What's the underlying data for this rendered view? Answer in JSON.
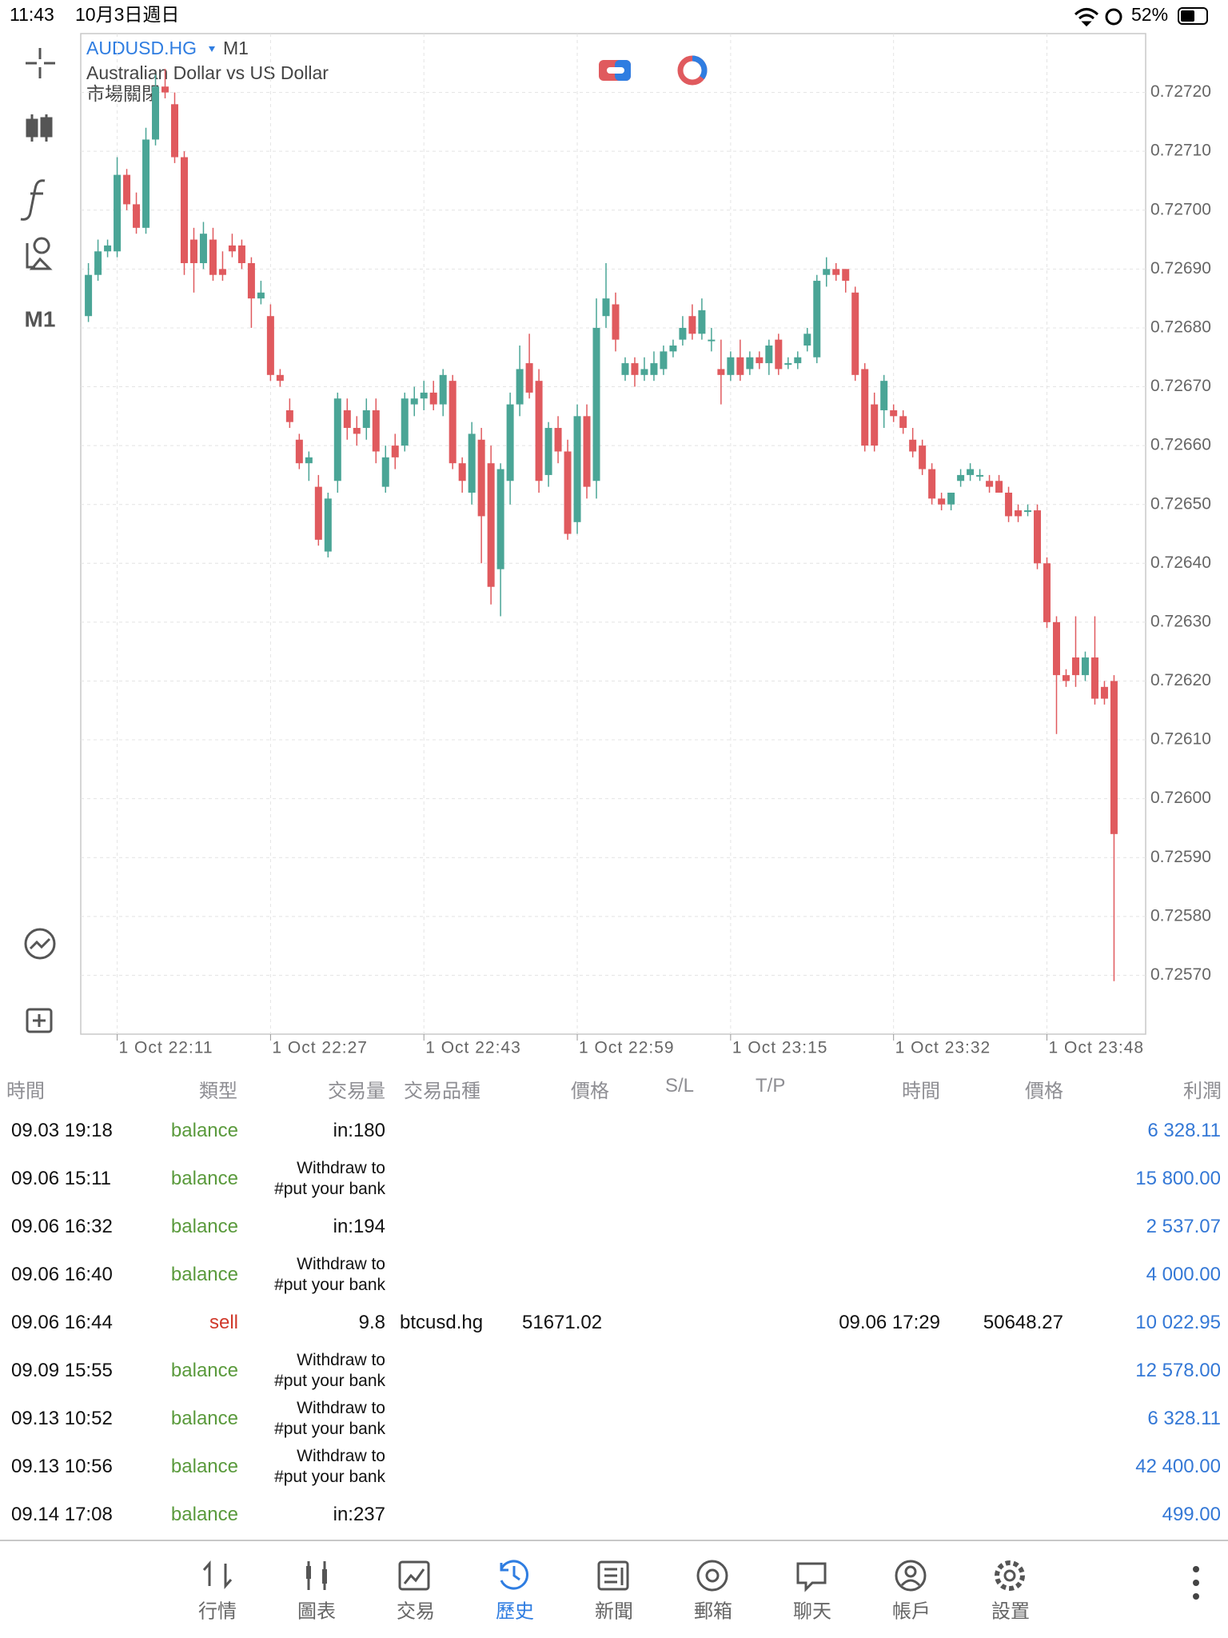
{
  "status_bar": {
    "time": "11:43",
    "date": "10月3日週日",
    "battery": "52%"
  },
  "toolbar": {
    "timeframe": "M1"
  },
  "chart_data": {
    "type": "candlestick",
    "symbol": "AUDUSD.HG",
    "timeframe": "M1",
    "description": "Australian Dollar vs US Dollar",
    "status": "市場關閉",
    "up_color": "#4aa596",
    "down_color": "#e05a5e",
    "grid": true,
    "open": [
      0.72682,
      0.72689,
      0.72693,
      0.72693,
      0.72706,
      0.72701,
      0.72697,
      0.72712,
      0.72721,
      0.72718,
      0.72709,
      0.72695,
      0.72691,
      0.72695,
      0.7269,
      0.72694,
      0.72694,
      0.72691,
      0.72685,
      0.72682,
      0.72672,
      0.72666,
      0.72661,
      0.72657,
      0.72653,
      0.72642,
      0.72654,
      0.72666,
      0.72663,
      0.72663,
      0.72666,
      0.72653,
      0.7266,
      0.7266,
      0.72667,
      0.72668,
      0.72669,
      0.72667,
      0.72671,
      0.72657,
      0.72652,
      0.72661,
      0.72657,
      0.72639,
      0.72654,
      0.72667,
      0.72674,
      0.72671,
      0.72655,
      0.72663,
      0.72659,
      0.72647,
      0.72665,
      0.72654,
      0.72682,
      0.72684,
      0.72672,
      0.72674,
      0.72672,
      0.72672,
      0.72673,
      0.72676,
      0.72678,
      0.72682,
      0.72679,
      0.72678,
      0.72673,
      0.72672,
      0.72675,
      0.72673,
      0.72675,
      0.72674,
      0.72678,
      0.72674,
      0.72674,
      0.72677,
      0.72675,
      0.72689,
      0.7269,
      0.7269,
      0.72686,
      0.72673,
      0.72667,
      0.72666,
      0.72666,
      0.72665,
      0.72661,
      0.7266,
      0.72656,
      0.72651,
      0.7265,
      0.72654,
      0.72655,
      0.72655,
      0.72654,
      0.72654,
      0.72652,
      0.72649,
      0.72649,
      0.72649,
      0.7264,
      0.7263,
      0.72621,
      0.72624,
      0.72621,
      0.72624,
      0.72619,
      0.7262
    ],
    "high": [
      0.72691,
      0.72695,
      0.72695,
      0.72709,
      0.72707,
      0.72703,
      0.72714,
      0.72723,
      0.72724,
      0.7272,
      0.7271,
      0.72697,
      0.72698,
      0.72697,
      0.72693,
      0.72696,
      0.72695,
      0.72692,
      0.72688,
      0.72684,
      0.72673,
      0.72668,
      0.72662,
      0.72659,
      0.72655,
      0.72652,
      0.72669,
      0.72668,
      0.72665,
      0.72668,
      0.72668,
      0.7266,
      0.72662,
      0.72669,
      0.7267,
      0.72671,
      0.72671,
      0.72673,
      0.72672,
      0.72658,
      0.72664,
      0.72663,
      0.7266,
      0.72657,
      0.72669,
      0.72677,
      0.72679,
      0.72673,
      0.72664,
      0.72665,
      0.72661,
      0.72667,
      0.72667,
      0.72685,
      0.72691,
      0.72686,
      0.72675,
      0.72675,
      0.72675,
      0.72676,
      0.72677,
      0.72678,
      0.72682,
      0.72684,
      0.72685,
      0.7268,
      0.72678,
      0.72676,
      0.72678,
      0.72676,
      0.72676,
      0.72678,
      0.72679,
      0.72675,
      0.72676,
      0.7268,
      0.72689,
      0.72692,
      0.72691,
      0.7269,
      0.72687,
      0.72674,
      0.72669,
      0.72672,
      0.72667,
      0.72666,
      0.72663,
      0.72661,
      0.72657,
      0.72652,
      0.72652,
      0.72656,
      0.72657,
      0.72656,
      0.72655,
      0.72655,
      0.72653,
      0.7265,
      0.7265,
      0.7265,
      0.72641,
      0.72631,
      0.72622,
      0.72631,
      0.72625,
      0.72631,
      0.7262,
      0.72621
    ],
    "low": [
      0.72681,
      0.72688,
      0.72692,
      0.72692,
      0.727,
      0.72696,
      0.72696,
      0.72711,
      0.72719,
      0.72708,
      0.72689,
      0.72686,
      0.7269,
      0.72688,
      0.72688,
      0.72692,
      0.7269,
      0.7268,
      0.72684,
      0.72671,
      0.7267,
      0.72663,
      0.72656,
      0.72654,
      0.72643,
      0.72641,
      0.72652,
      0.72661,
      0.7266,
      0.72661,
      0.72657,
      0.72652,
      0.72656,
      0.72659,
      0.72665,
      0.72666,
      0.72666,
      0.72665,
      0.72656,
      0.72652,
      0.7265,
      0.7264,
      0.72633,
      0.72631,
      0.7265,
      0.72665,
      0.72668,
      0.72652,
      0.72653,
      0.72657,
      0.72644,
      0.72645,
      0.72651,
      0.72651,
      0.7268,
      0.72676,
      0.72671,
      0.7267,
      0.72671,
      0.72671,
      0.72672,
      0.72675,
      0.72677,
      0.72678,
      0.72678,
      0.72676,
      0.72667,
      0.72671,
      0.72671,
      0.72672,
      0.72673,
      0.72672,
      0.72672,
      0.72673,
      0.72673,
      0.72676,
      0.72674,
      0.72687,
      0.72688,
      0.72686,
      0.72671,
      0.72659,
      0.72659,
      0.72663,
      0.72664,
      0.72662,
      0.72658,
      0.72655,
      0.7265,
      0.72649,
      0.72649,
      0.72653,
      0.72654,
      0.72654,
      0.72652,
      0.72652,
      0.72647,
      0.72647,
      0.72648,
      0.72639,
      0.72629,
      0.72611,
      0.72619,
      0.72619,
      0.7262,
      0.72616,
      0.72616,
      0.72569
    ],
    "close": [
      0.72689,
      0.72693,
      0.72694,
      0.72706,
      0.72701,
      0.72697,
      0.72712,
      0.72721,
      0.7272,
      0.72709,
      0.72691,
      0.72691,
      0.72696,
      0.72689,
      0.72689,
      0.72693,
      0.72691,
      0.72685,
      0.72686,
      0.72672,
      0.72671,
      0.72664,
      0.72657,
      0.72658,
      0.72644,
      0.72651,
      0.72668,
      0.72663,
      0.72662,
      0.72666,
      0.72659,
      0.72658,
      0.72658,
      0.72668,
      0.72668,
      0.72669,
      0.72667,
      0.72672,
      0.72657,
      0.72654,
      0.72662,
      0.72648,
      0.72636,
      0.72656,
      0.72667,
      0.72673,
      0.72669,
      0.72654,
      0.72663,
      0.72659,
      0.72645,
      0.72665,
      0.72653,
      0.7268,
      0.72685,
      0.72678,
      0.72674,
      0.72672,
      0.72673,
      0.72674,
      0.72676,
      0.72677,
      0.7268,
      0.72679,
      0.72683,
      0.72678,
      0.72672,
      0.72675,
      0.72672,
      0.72675,
      0.72674,
      0.72677,
      0.72673,
      0.72674,
      0.72675,
      0.72679,
      0.72688,
      0.7269,
      0.72689,
      0.72688,
      0.72672,
      0.7266,
      0.7266,
      0.72671,
      0.72665,
      0.72663,
      0.72659,
      0.72656,
      0.72651,
      0.7265,
      0.72652,
      0.72655,
      0.72656,
      0.72655,
      0.72653,
      0.72652,
      0.72648,
      0.72648,
      0.72649,
      0.7264,
      0.7263,
      0.72621,
      0.7262,
      0.72621,
      0.72624,
      0.72617,
      0.72617,
      0.72594
    ],
    "xlim": [
      -0.8,
      110.3
    ],
    "xticks": [
      {
        "value": 3,
        "label": "1 Oct 22:11"
      },
      {
        "value": 19,
        "label": "1 Oct 22:27"
      },
      {
        "value": 35,
        "label": "1 Oct 22:43"
      },
      {
        "value": 51,
        "label": "1 Oct 22:59"
      },
      {
        "value": 67,
        "label": "1 Oct 23:15"
      },
      {
        "value": 84,
        "label": "1 Oct 23:32"
      },
      {
        "value": 100,
        "label": "1 Oct 23:48"
      }
    ],
    "ylim": [
      0.7256,
      0.7273
    ],
    "yticks": [
      {
        "value": 0.7257,
        "label": "0.72570"
      },
      {
        "value": 0.7258,
        "label": "0.72580"
      },
      {
        "value": 0.7259,
        "label": "0.72590"
      },
      {
        "value": 0.726,
        "label": "0.72600"
      },
      {
        "value": 0.7261,
        "label": "0.72610"
      },
      {
        "value": 0.7262,
        "label": "0.72620"
      },
      {
        "value": 0.7263,
        "label": "0.72630"
      },
      {
        "value": 0.7264,
        "label": "0.72640"
      },
      {
        "value": 0.7265,
        "label": "0.72650"
      },
      {
        "value": 0.7266,
        "label": "0.72660"
      },
      {
        "value": 0.7267,
        "label": "0.72670"
      },
      {
        "value": 0.7268,
        "label": "0.72680"
      },
      {
        "value": 0.7269,
        "label": "0.72690"
      },
      {
        "value": 0.727,
        "label": "0.72700"
      },
      {
        "value": 0.7271,
        "label": "0.72710"
      },
      {
        "value": 0.7272,
        "label": "0.72720"
      }
    ]
  },
  "table": {
    "headers": [
      "時間",
      "類型",
      "交易量",
      "交易品種",
      "價格",
      "S/L",
      "T/P",
      "時間",
      "價格",
      "利潤"
    ],
    "rows": [
      {
        "time": "09.03 19:18",
        "type": "balance",
        "volume": "in:180",
        "profit": "6 328.11"
      },
      {
        "time": "09.06 15:11",
        "type": "balance",
        "volume": "Withdraw to\n#put your bank",
        "profit": "15 800.00"
      },
      {
        "time": "09.06 16:32",
        "type": "balance",
        "volume": "in:194",
        "profit": "2 537.07"
      },
      {
        "time": "09.06 16:40",
        "type": "balance",
        "volume": "Withdraw to\n#put your bank",
        "profit": "4 000.00"
      },
      {
        "time": "09.06 16:44",
        "type": "sell",
        "volume": "9.8",
        "symbol": "btcusd.hg",
        "price": "51671.02",
        "close_time": "09.06 17:29",
        "close_price": "50648.27",
        "profit": "10 022.95"
      },
      {
        "time": "09.09 15:55",
        "type": "balance",
        "volume": "Withdraw to\n#put your bank",
        "profit": "12 578.00"
      },
      {
        "time": "09.13 10:52",
        "type": "balance",
        "volume": "Withdraw to\n#put your bank",
        "profit": "6 328.11"
      },
      {
        "time": "09.13 10:56",
        "type": "balance",
        "volume": "Withdraw to\n#put your bank",
        "profit": "42 400.00"
      },
      {
        "time": "09.14 17:08",
        "type": "balance",
        "volume": "in:237",
        "profit": "499.00"
      }
    ]
  },
  "nav": {
    "items": [
      "行情",
      "圖表",
      "交易",
      "歷史",
      "新聞",
      "郵箱",
      "聊天",
      "帳戶",
      "設置"
    ],
    "active": 3
  }
}
